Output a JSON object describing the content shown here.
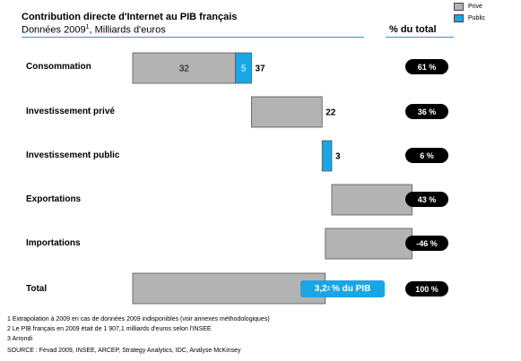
{
  "header": {
    "title": "Contribution directe d'Internet au PIB français",
    "subtitle_prefix": "Données 2009",
    "subtitle_sup": "1",
    "subtitle_suffix": ", Milliards d'euros",
    "pct_header": "% du total"
  },
  "legend": {
    "items": [
      {
        "label": "Privé",
        "color": "#b3b3b3"
      },
      {
        "label": "Public",
        "color": "#1aa6e4"
      }
    ]
  },
  "colors": {
    "private": "#b3b3b3",
    "public": "#1aa6e4",
    "pill": "#000000",
    "rule": "#2a9bd6"
  },
  "chart_data": {
    "type": "bar",
    "subtype": "waterfall",
    "unit": "Milliards d'euros",
    "xlim": [
      0,
      62
    ],
    "grid": false,
    "legend_position": "top-right",
    "categories": [
      "Consommation",
      "Investissement privé",
      "Investissement public",
      "Exportations",
      "Importations",
      "Total"
    ],
    "rows": [
      {
        "category": "Consommation",
        "segments": [
          {
            "kind": "private",
            "start": 0,
            "value": 32,
            "label": "32"
          },
          {
            "kind": "public",
            "start": 32,
            "value": 5,
            "label": "5"
          }
        ],
        "total_label": "37",
        "total_sup": "",
        "share": "61 %"
      },
      {
        "category": "Investissement privé",
        "segments": [
          {
            "kind": "private",
            "start": 37,
            "value": 22,
            "label": ""
          }
        ],
        "total_label": "22",
        "total_sup": "",
        "share": "36 %"
      },
      {
        "category": "Investissement public",
        "segments": [
          {
            "kind": "public",
            "start": 59,
            "value": 3,
            "label": ""
          }
        ],
        "total_label": "3",
        "total_sup": "",
        "share": "6 %"
      },
      {
        "category": "Exportations",
        "segments": [
          {
            "kind": "private",
            "start": 62,
            "value": 25,
            "label": ""
          }
        ],
        "total_label": "25",
        "total_sup": "",
        "share": "43 %"
      },
      {
        "category": "Importations",
        "segments": [
          {
            "kind": "private",
            "start": 60,
            "value": 27,
            "label": ""
          }
        ],
        "total_label": "27",
        "total_sup": "",
        "share": "-46 %"
      },
      {
        "category": "Total",
        "segments": [
          {
            "kind": "private",
            "start": 0,
            "value": 60,
            "label": ""
          }
        ],
        "total_label": "60",
        "total_sup": "3",
        "share": "100 %"
      }
    ],
    "annotation": {
      "value": "3,2",
      "sup": "2",
      "suffix": " % du PIB"
    }
  },
  "footnotes": [
    "1 Extrapolation à 2009 en cas de données 2009 indisponibles (voir annexes méthodologiques)",
    "2 Le PIB français en 2009 était de 1 907,1 milliards d'euros selon l'INSEE",
    "3 Arrondi",
    "SOURCE : Fevad 2009, INSEE, ARCEP, Strategy Analytics, IDC, Analyse McKinsey"
  ]
}
